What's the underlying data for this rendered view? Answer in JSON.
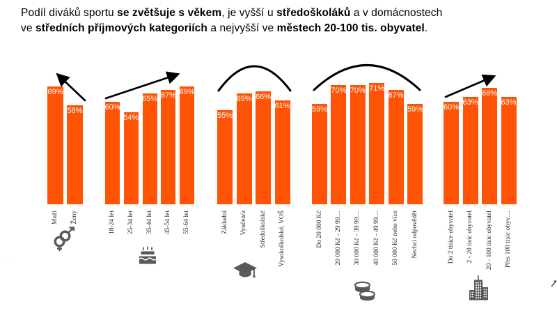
{
  "title": {
    "lines": [
      [
        {
          "text": "Podíl diváků sportu ",
          "bold": false
        },
        {
          "text": "se zvětšuje s věkem",
          "bold": true
        },
        {
          "text": ", je vyšší u ",
          "bold": false
        },
        {
          "text": "středoškoláků",
          "bold": true
        },
        {
          "text": " a v domácnostech",
          "bold": false
        }
      ],
      [
        {
          "text": "ve ",
          "bold": false
        },
        {
          "text": "středních příjmových kategoriích",
          "bold": true
        },
        {
          "text": " a nejvyšší ve ",
          "bold": false
        },
        {
          "text": "městech 20-100 tis. obyvatel",
          "bold": true
        },
        {
          "text": ".",
          "bold": false
        }
      ]
    ]
  },
  "colors": {
    "bar": "#FF5405",
    "icon": "#595959",
    "trend": "#000000",
    "value_label": "#FFFFFF",
    "category_label": "#262626"
  },
  "chart_data": {
    "type": "bar",
    "value_format": "percent",
    "ylim": [
      0,
      100
    ],
    "grid": false,
    "legend": "none",
    "groups": [
      {
        "name": "gender",
        "icon": "gender-icon",
        "trend": "arrow-up-left",
        "categories": [
          "Muži",
          "Ženy"
        ],
        "values": [
          69,
          58
        ]
      },
      {
        "name": "age",
        "icon": "birthday-cake-icon",
        "trend": "arrow-up-right",
        "categories": [
          "18-24 let",
          "25-34 let",
          "35-44 let",
          "45-54 let",
          "55-64 let"
        ],
        "values": [
          60,
          54,
          65,
          67,
          69
        ]
      },
      {
        "name": "education",
        "icon": "graduation-cap-icon",
        "trend": "arc",
        "categories": [
          "Základní",
          "Vyučen/a",
          "Středoškolské",
          "Vysokoškolské, VOŠ"
        ],
        "values": [
          55,
          65,
          66,
          61
        ]
      },
      {
        "name": "income",
        "icon": "coins-icon",
        "trend": "arc",
        "categories": [
          "Do 20 000 Kč",
          "20 000 Kč - 29 99…",
          "30 000 Kč - 39 99…",
          "40 000 Kč - 49 99…",
          "50 000 Kč nebo více",
          "Nechci odpovědět"
        ],
        "values": [
          59,
          70,
          70,
          71,
          67,
          59
        ]
      },
      {
        "name": "city-size",
        "icon": "city-buildings-icon",
        "trend": "arrow-up-right",
        "categories": [
          "Do 2 tisíce obyvatel",
          "2 - 20 tisíc obyvatel",
          "20 - 100 tisíc obyvatel",
          "Přes 100 tisíc obyv…"
        ],
        "values": [
          60,
          63,
          68,
          63
        ]
      }
    ]
  },
  "artifacts": {
    "left_marks": "- -"
  }
}
